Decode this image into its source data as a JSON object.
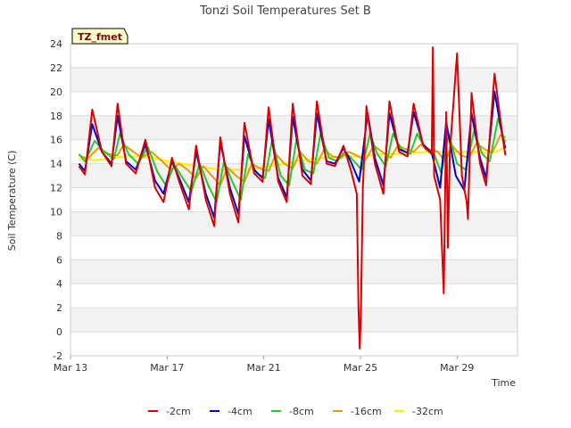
{
  "chart_data": {
    "type": "line",
    "title": "Tonzi Soil Temperatures Set B",
    "xlabel": "Time",
    "ylabel": "Soil Temperature (C)",
    "ylim": [
      -2,
      24
    ],
    "y_ticks": [
      -2,
      0,
      2,
      4,
      6,
      8,
      10,
      12,
      14,
      16,
      18,
      20,
      22,
      24
    ],
    "xlim": [
      0,
      18.5
    ],
    "x_ticks": [
      {
        "x": 0,
        "label": "Mar 13"
      },
      {
        "x": 4,
        "label": "Mar 17"
      },
      {
        "x": 8,
        "label": "Mar 21"
      },
      {
        "x": 12,
        "label": "Mar 25"
      },
      {
        "x": 16,
        "label": "Mar 29"
      }
    ],
    "grid": true,
    "legend_position": "bottom",
    "tag_label": "TZ_fmet",
    "series": [
      {
        "name": "-2cm",
        "color": "#dd0000",
        "points": [
          [
            0.35,
            13.8
          ],
          [
            0.6,
            13.1
          ],
          [
            0.9,
            18.5
          ],
          [
            1.3,
            15.0
          ],
          [
            1.7,
            13.8
          ],
          [
            1.95,
            19.0
          ],
          [
            2.3,
            14.0
          ],
          [
            2.7,
            13.2
          ],
          [
            3.1,
            16.0
          ],
          [
            3.5,
            12.0
          ],
          [
            3.85,
            10.8
          ],
          [
            4.2,
            14.5
          ],
          [
            4.5,
            12.5
          ],
          [
            4.9,
            10.2
          ],
          [
            5.2,
            15.5
          ],
          [
            5.6,
            11.0
          ],
          [
            5.95,
            8.8
          ],
          [
            6.2,
            16.2
          ],
          [
            6.6,
            11.5
          ],
          [
            6.95,
            9.1
          ],
          [
            7.2,
            17.4
          ],
          [
            7.6,
            13.2
          ],
          [
            7.95,
            12.5
          ],
          [
            8.2,
            18.7
          ],
          [
            8.6,
            12.5
          ],
          [
            8.95,
            10.8
          ],
          [
            9.2,
            19.0
          ],
          [
            9.6,
            13.0
          ],
          [
            9.95,
            12.3
          ],
          [
            10.2,
            19.2
          ],
          [
            10.6,
            14.0
          ],
          [
            10.95,
            13.8
          ],
          [
            11.3,
            15.5
          ],
          [
            11.6,
            13.5
          ],
          [
            11.85,
            11.5
          ],
          [
            11.92,
            2.0
          ],
          [
            11.97,
            -1.4
          ],
          [
            12.02,
            1.5
          ],
          [
            12.1,
            12.0
          ],
          [
            12.25,
            18.8
          ],
          [
            12.6,
            14.0
          ],
          [
            12.95,
            11.5
          ],
          [
            13.2,
            19.2
          ],
          [
            13.6,
            15.0
          ],
          [
            13.95,
            14.6
          ],
          [
            14.2,
            19.0
          ],
          [
            14.6,
            15.5
          ],
          [
            14.95,
            14.8
          ],
          [
            15.0,
            23.7
          ],
          [
            15.05,
            13.0
          ],
          [
            15.3,
            11.0
          ],
          [
            15.45,
            3.2
          ],
          [
            15.55,
            18.3
          ],
          [
            15.62,
            7.0
          ],
          [
            15.7,
            15.0
          ],
          [
            16.0,
            23.2
          ],
          [
            16.2,
            13.0
          ],
          [
            16.4,
            10.8
          ],
          [
            16.45,
            9.4
          ],
          [
            16.6,
            19.9
          ],
          [
            16.95,
            14.0
          ],
          [
            17.2,
            12.2
          ],
          [
            17.55,
            21.5
          ],
          [
            17.9,
            16.0
          ],
          [
            18.0,
            14.7
          ]
        ]
      },
      {
        "name": "-4cm",
        "color": "#0000cc",
        "points": [
          [
            0.35,
            14.0
          ],
          [
            0.6,
            13.4
          ],
          [
            0.9,
            17.3
          ],
          [
            1.3,
            15.0
          ],
          [
            1.7,
            14.0
          ],
          [
            1.95,
            18.0
          ],
          [
            2.3,
            14.2
          ],
          [
            2.7,
            13.5
          ],
          [
            3.1,
            15.6
          ],
          [
            3.5,
            12.6
          ],
          [
            3.85,
            11.5
          ],
          [
            4.2,
            14.2
          ],
          [
            4.5,
            12.8
          ],
          [
            4.9,
            10.8
          ],
          [
            5.2,
            15.0
          ],
          [
            5.6,
            11.5
          ],
          [
            5.95,
            9.5
          ],
          [
            6.2,
            15.8
          ],
          [
            6.6,
            12.0
          ],
          [
            6.95,
            9.8
          ],
          [
            7.2,
            16.3
          ],
          [
            7.6,
            13.5
          ],
          [
            7.95,
            12.8
          ],
          [
            8.2,
            17.7
          ],
          [
            8.6,
            12.8
          ],
          [
            8.95,
            11.2
          ],
          [
            9.2,
            17.9
          ],
          [
            9.6,
            13.5
          ],
          [
            9.95,
            12.6
          ],
          [
            10.2,
            18.2
          ],
          [
            10.6,
            14.2
          ],
          [
            10.95,
            14.0
          ],
          [
            11.3,
            15.3
          ],
          [
            11.6,
            14.2
          ],
          [
            11.95,
            12.5
          ],
          [
            12.3,
            18.2
          ],
          [
            12.6,
            14.5
          ],
          [
            12.95,
            12.2
          ],
          [
            13.2,
            18.2
          ],
          [
            13.6,
            15.2
          ],
          [
            13.95,
            14.9
          ],
          [
            14.2,
            18.3
          ],
          [
            14.6,
            15.6
          ],
          [
            14.95,
            14.9
          ],
          [
            15.3,
            12.0
          ],
          [
            15.55,
            17.5
          ],
          [
            15.95,
            13.0
          ],
          [
            16.3,
            11.8
          ],
          [
            16.6,
            18.2
          ],
          [
            16.95,
            14.5
          ],
          [
            17.2,
            12.8
          ],
          [
            17.55,
            20.0
          ],
          [
            17.9,
            16.0
          ],
          [
            18.0,
            15.3
          ]
        ]
      },
      {
        "name": "-8cm",
        "color": "#22cc22",
        "points": [
          [
            0.35,
            14.8
          ],
          [
            0.6,
            14.2
          ],
          [
            1.0,
            15.9
          ],
          [
            1.4,
            15.0
          ],
          [
            1.8,
            14.4
          ],
          [
            2.05,
            16.5
          ],
          [
            2.4,
            14.8
          ],
          [
            2.8,
            14.0
          ],
          [
            3.2,
            15.4
          ],
          [
            3.6,
            13.3
          ],
          [
            3.95,
            12.2
          ],
          [
            4.3,
            13.9
          ],
          [
            4.65,
            12.8
          ],
          [
            5.0,
            11.7
          ],
          [
            5.35,
            14.0
          ],
          [
            5.7,
            12.2
          ],
          [
            6.05,
            10.8
          ],
          [
            6.35,
            14.2
          ],
          [
            6.7,
            12.5
          ],
          [
            7.05,
            11.0
          ],
          [
            7.35,
            14.8
          ],
          [
            7.7,
            13.2
          ],
          [
            8.05,
            12.8
          ],
          [
            8.35,
            16.0
          ],
          [
            8.7,
            13.0
          ],
          [
            9.05,
            12.2
          ],
          [
            9.35,
            16.0
          ],
          [
            9.7,
            13.5
          ],
          [
            10.05,
            13.2
          ],
          [
            10.35,
            16.5
          ],
          [
            10.7,
            14.5
          ],
          [
            11.05,
            14.2
          ],
          [
            11.35,
            15.0
          ],
          [
            11.7,
            14.3
          ],
          [
            12.05,
            13.5
          ],
          [
            12.4,
            16.5
          ],
          [
            12.7,
            14.8
          ],
          [
            13.05,
            13.8
          ],
          [
            13.35,
            16.5
          ],
          [
            13.7,
            15.2
          ],
          [
            14.05,
            14.8
          ],
          [
            14.35,
            16.5
          ],
          [
            14.7,
            15.2
          ],
          [
            15.05,
            14.8
          ],
          [
            15.35,
            13.2
          ],
          [
            15.65,
            16.5
          ],
          [
            16.0,
            14.0
          ],
          [
            16.35,
            13.5
          ],
          [
            16.7,
            16.7
          ],
          [
            17.05,
            14.8
          ],
          [
            17.35,
            14.2
          ],
          [
            17.7,
            17.8
          ],
          [
            17.95,
            16.0
          ],
          [
            18.0,
            15.8
          ]
        ]
      },
      {
        "name": "-16cm",
        "color": "#ee9900",
        "points": [
          [
            0.35,
            14.7
          ],
          [
            0.7,
            14.4
          ],
          [
            1.15,
            15.3
          ],
          [
            1.6,
            14.8
          ],
          [
            1.95,
            14.7
          ],
          [
            2.2,
            15.6
          ],
          [
            2.6,
            15.0
          ],
          [
            2.95,
            14.5
          ],
          [
            3.35,
            15.0
          ],
          [
            3.8,
            14.2
          ],
          [
            4.15,
            13.5
          ],
          [
            4.5,
            14.0
          ],
          [
            4.85,
            13.5
          ],
          [
            5.2,
            12.8
          ],
          [
            5.5,
            13.8
          ],
          [
            5.85,
            13.0
          ],
          [
            6.2,
            12.2
          ],
          [
            6.5,
            13.7
          ],
          [
            6.85,
            13.0
          ],
          [
            7.2,
            12.5
          ],
          [
            7.5,
            14.0
          ],
          [
            7.85,
            13.6
          ],
          [
            8.2,
            13.4
          ],
          [
            8.5,
            14.8
          ],
          [
            8.85,
            14.0
          ],
          [
            9.2,
            13.6
          ],
          [
            9.5,
            15.0
          ],
          [
            9.85,
            14.2
          ],
          [
            10.2,
            14.0
          ],
          [
            10.5,
            15.2
          ],
          [
            10.85,
            14.6
          ],
          [
            11.2,
            14.5
          ],
          [
            11.5,
            15.0
          ],
          [
            11.85,
            14.7
          ],
          [
            12.2,
            14.3
          ],
          [
            12.55,
            15.5
          ],
          [
            12.9,
            15.0
          ],
          [
            13.25,
            14.5
          ],
          [
            13.55,
            15.5
          ],
          [
            13.9,
            15.2
          ],
          [
            14.2,
            15.0
          ],
          [
            14.5,
            15.6
          ],
          [
            14.85,
            15.2
          ],
          [
            15.2,
            15.0
          ],
          [
            15.5,
            14.2
          ],
          [
            15.8,
            15.5
          ],
          [
            16.15,
            14.7
          ],
          [
            16.5,
            14.5
          ],
          [
            16.8,
            15.7
          ],
          [
            17.15,
            15.2
          ],
          [
            17.45,
            14.9
          ],
          [
            17.8,
            16.4
          ],
          [
            18.0,
            16.2
          ]
        ]
      },
      {
        "name": "-32cm",
        "color": "#ffee00",
        "points": [
          [
            0.35,
            14.4
          ],
          [
            1.0,
            14.3
          ],
          [
            1.6,
            14.4
          ],
          [
            2.2,
            14.6
          ],
          [
            2.8,
            14.6
          ],
          [
            3.4,
            14.5
          ],
          [
            4.0,
            14.2
          ],
          [
            4.6,
            14.0
          ],
          [
            5.2,
            13.8
          ],
          [
            5.8,
            13.6
          ],
          [
            6.4,
            13.5
          ],
          [
            7.0,
            13.5
          ],
          [
            7.6,
            13.6
          ],
          [
            8.2,
            13.8
          ],
          [
            8.8,
            14.0
          ],
          [
            9.4,
            14.2
          ],
          [
            10.0,
            14.4
          ],
          [
            10.6,
            14.5
          ],
          [
            11.2,
            14.6
          ],
          [
            11.8,
            14.6
          ],
          [
            12.4,
            14.7
          ],
          [
            13.0,
            14.8
          ],
          [
            13.6,
            14.8
          ],
          [
            14.2,
            14.9
          ],
          [
            14.8,
            15.0
          ],
          [
            15.4,
            15.0
          ],
          [
            16.0,
            15.0
          ],
          [
            16.6,
            15.0
          ],
          [
            17.2,
            14.9
          ],
          [
            17.6,
            15.0
          ],
          [
            18.0,
            15.4
          ]
        ]
      }
    ]
  }
}
